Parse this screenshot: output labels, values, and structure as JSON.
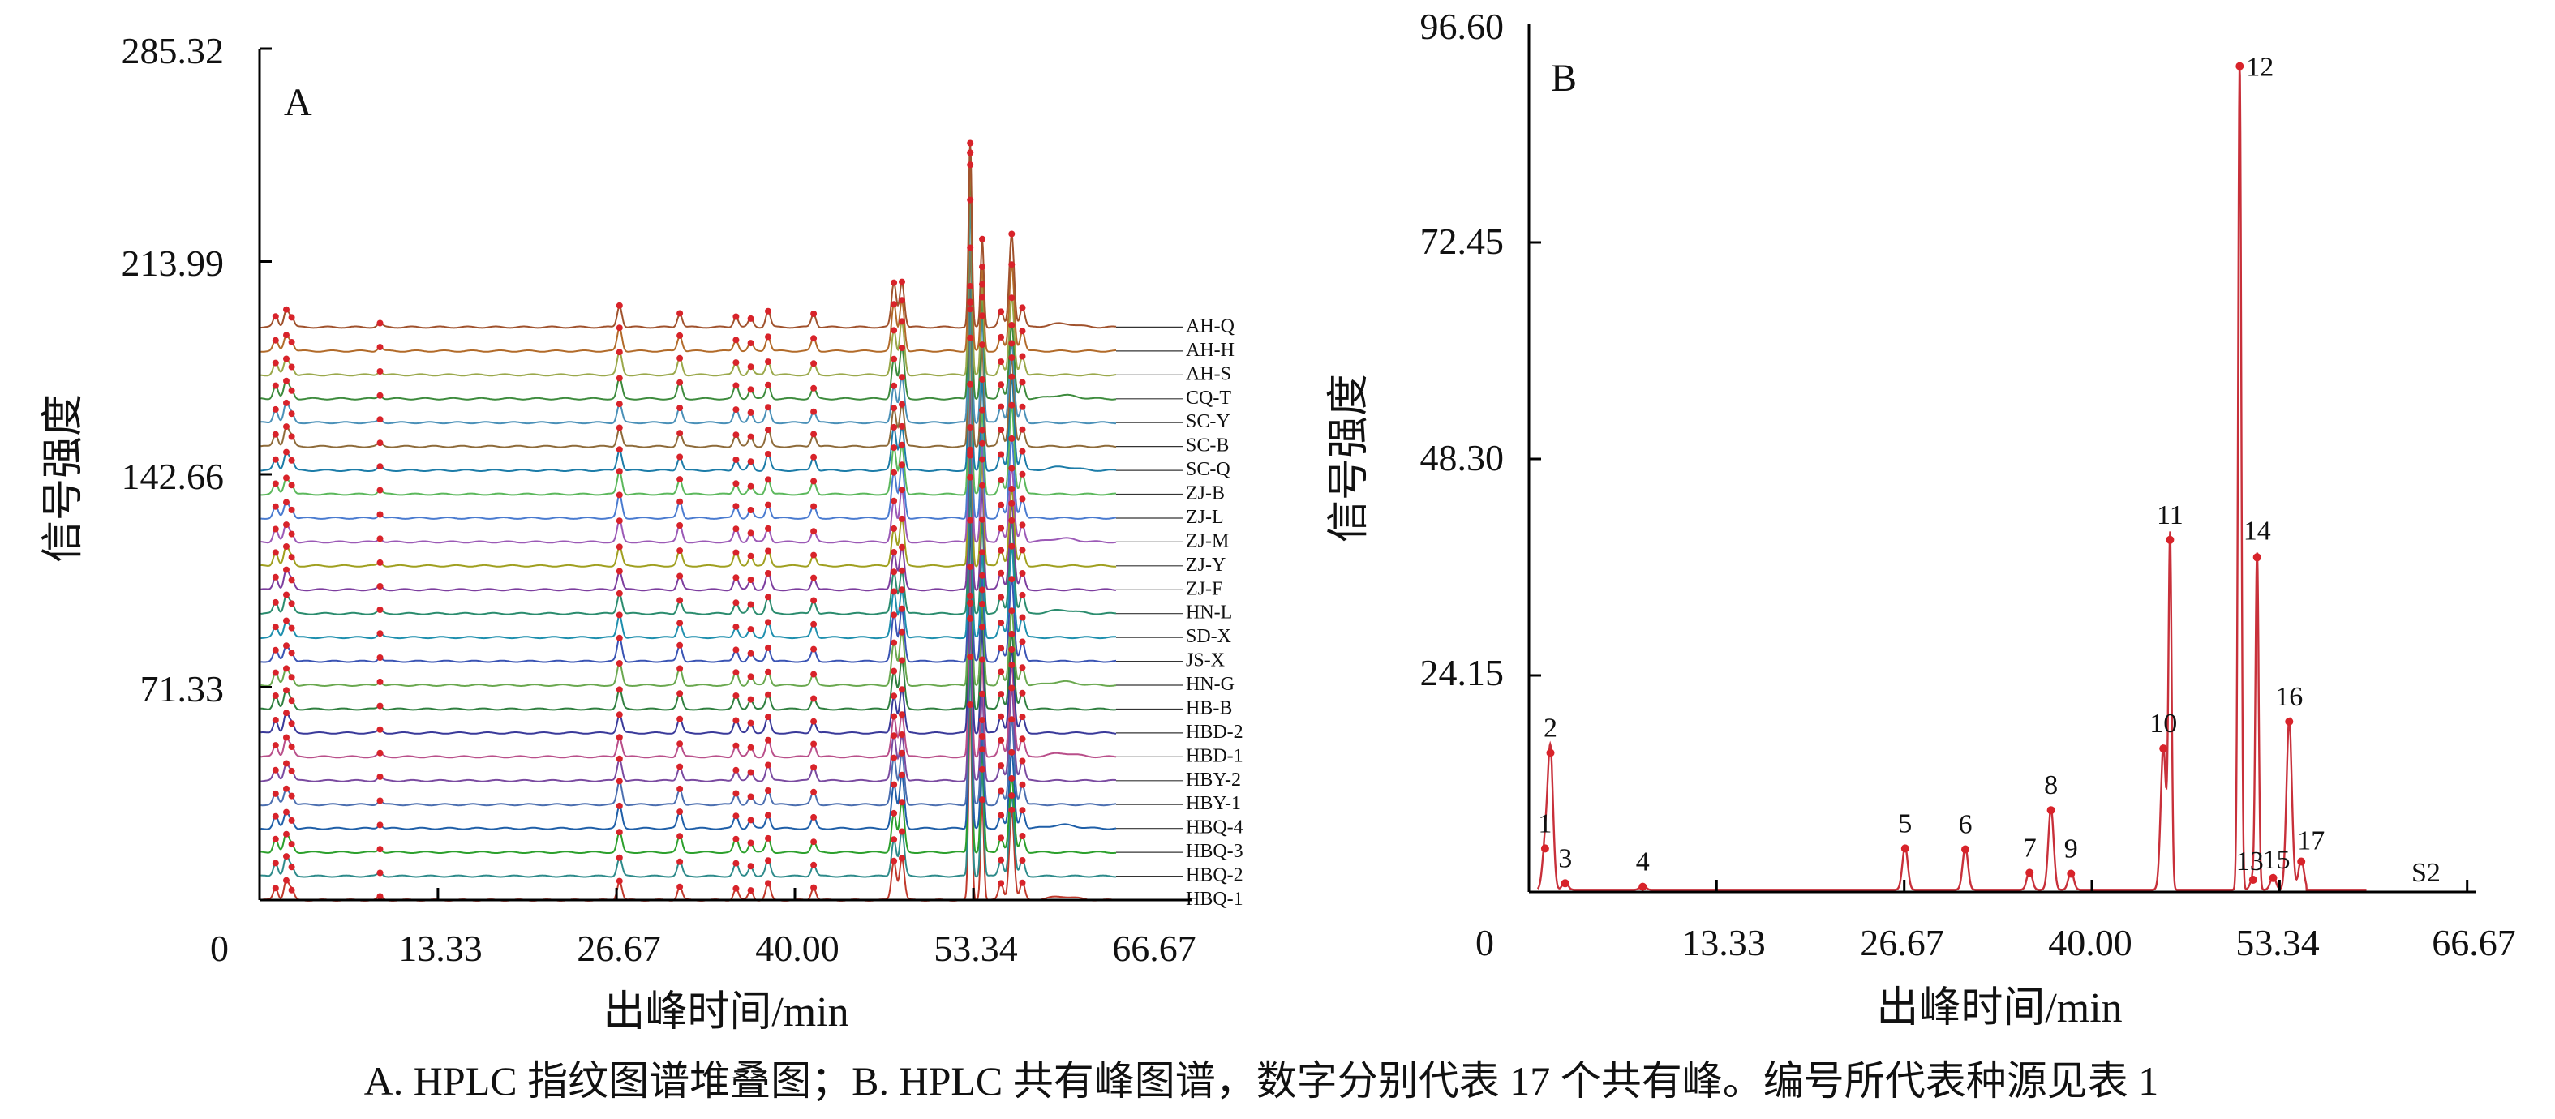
{
  "figure": {
    "caption": "A. HPLC 指纹图谱堆叠图；B. HPLC 共有峰图谱，数字分别代表 17 个共有峰。编号所代表种源见表 1"
  },
  "colors": {
    "peak_marker": "#d8232a",
    "axis": "#000000",
    "peak_line_b": "#c8303a"
  },
  "chart_data": [
    {
      "panel": "A",
      "type": "line",
      "title": "HPLC 指纹图谱堆叠图",
      "xlabel": "出峰时间/min",
      "ylabel": "信号强度",
      "xlim": [
        0,
        66.67
      ],
      "ylim": [
        0,
        285.32
      ],
      "x_ticks": [
        0,
        13.33,
        26.67,
        40.0,
        53.34,
        66.67
      ],
      "x_tick_labels": [
        "0",
        "13.33",
        "26.67",
        "40.00",
        "53.34",
        "66.67"
      ],
      "y_ticks": [
        71.33,
        142.66,
        213.99,
        285.32
      ],
      "y_tick_labels": [
        "71.33",
        "142.66",
        "213.99",
        "285.32"
      ],
      "common_peak_times": [
        1.2,
        2.0,
        2.4,
        9.0,
        26.9,
        31.4,
        35.6,
        36.7,
        38.0,
        41.4,
        47.4,
        48.0,
        53.1,
        54.0,
        55.4,
        56.2,
        57.0
      ],
      "series": [
        {
          "name": "HBQ-1",
          "baseline": 0.0
        },
        {
          "name": "HBQ-2",
          "baseline": 8.0
        },
        {
          "name": "HBQ-3",
          "baseline": 16.0
        },
        {
          "name": "HBQ-4",
          "baseline": 24.0
        },
        {
          "name": "HBY-1",
          "baseline": 32.0
        },
        {
          "name": "HBY-2",
          "baseline": 40.0
        },
        {
          "name": "HBD-1",
          "baseline": 48.0
        },
        {
          "name": "HBD-2",
          "baseline": 56.0
        },
        {
          "name": "HB-B",
          "baseline": 64.0
        },
        {
          "name": "HN-G",
          "baseline": 72.0
        },
        {
          "name": "JS-X",
          "baseline": 80.0
        },
        {
          "name": "SD-X",
          "baseline": 88.0
        },
        {
          "name": "HN-L",
          "baseline": 96.0
        },
        {
          "name": "ZJ-F",
          "baseline": 104.0
        },
        {
          "name": "ZJ-Y",
          "baseline": 112.0
        },
        {
          "name": "ZJ-M",
          "baseline": 120.0
        },
        {
          "name": "ZJ-L",
          "baseline": 128.0
        },
        {
          "name": "ZJ-B",
          "baseline": 136.0
        },
        {
          "name": "SC-Q",
          "baseline": 144.0
        },
        {
          "name": "SC-B",
          "baseline": 152.0
        },
        {
          "name": "SC-Y",
          "baseline": 160.0
        },
        {
          "name": "CQ-T",
          "baseline": 168.0
        },
        {
          "name": "AH-S",
          "baseline": 176.0
        },
        {
          "name": "AH-H",
          "baseline": 184.0
        },
        {
          "name": "AH-Q",
          "baseline": 192.0
        }
      ]
    },
    {
      "panel": "B",
      "type": "line",
      "title": "HPLC 共有峰图谱",
      "xlabel": "出峰时间/min",
      "ylabel": "信号强度",
      "xlim": [
        0,
        66.67
      ],
      "ylim": [
        0,
        96.6
      ],
      "x_ticks": [
        0,
        13.33,
        26.67,
        40.0,
        53.34,
        66.67
      ],
      "x_tick_labels": [
        "0",
        "13.33",
        "26.67",
        "40.00",
        "53.34",
        "66.67"
      ],
      "y_ticks": [
        24.15,
        48.3,
        72.45,
        96.6
      ],
      "y_tick_labels": [
        "24.15",
        "48.30",
        "72.45",
        "96.60"
      ],
      "series_name": "S2",
      "peaks": [
        {
          "label": "1",
          "x": 0.6,
          "y": 5.0
        },
        {
          "label": "2",
          "x": 1.0,
          "y": 16.0
        },
        {
          "label": "3",
          "x": 2.1,
          "y": 1.0
        },
        {
          "label": "4",
          "x": 7.9,
          "y": 0.6
        },
        {
          "label": "5",
          "x": 27.5,
          "y": 5.0
        },
        {
          "label": "6",
          "x": 32.0,
          "y": 4.9
        },
        {
          "label": "7",
          "x": 36.8,
          "y": 2.2
        },
        {
          "label": "8",
          "x": 38.4,
          "y": 9.4
        },
        {
          "label": "9",
          "x": 39.9,
          "y": 2.1
        },
        {
          "label": "10",
          "x": 46.8,
          "y": 16.5
        },
        {
          "label": "11",
          "x": 47.3,
          "y": 40.5
        },
        {
          "label": "12",
          "x": 52.5,
          "y": 95.0
        },
        {
          "label": "13",
          "x": 53.5,
          "y": 1.4
        },
        {
          "label": "14",
          "x": 53.8,
          "y": 38.5
        },
        {
          "label": "15",
          "x": 55.0,
          "y": 1.6
        },
        {
          "label": "16",
          "x": 56.2,
          "y": 19.6
        },
        {
          "label": "17",
          "x": 57.1,
          "y": 3.5
        }
      ]
    }
  ]
}
